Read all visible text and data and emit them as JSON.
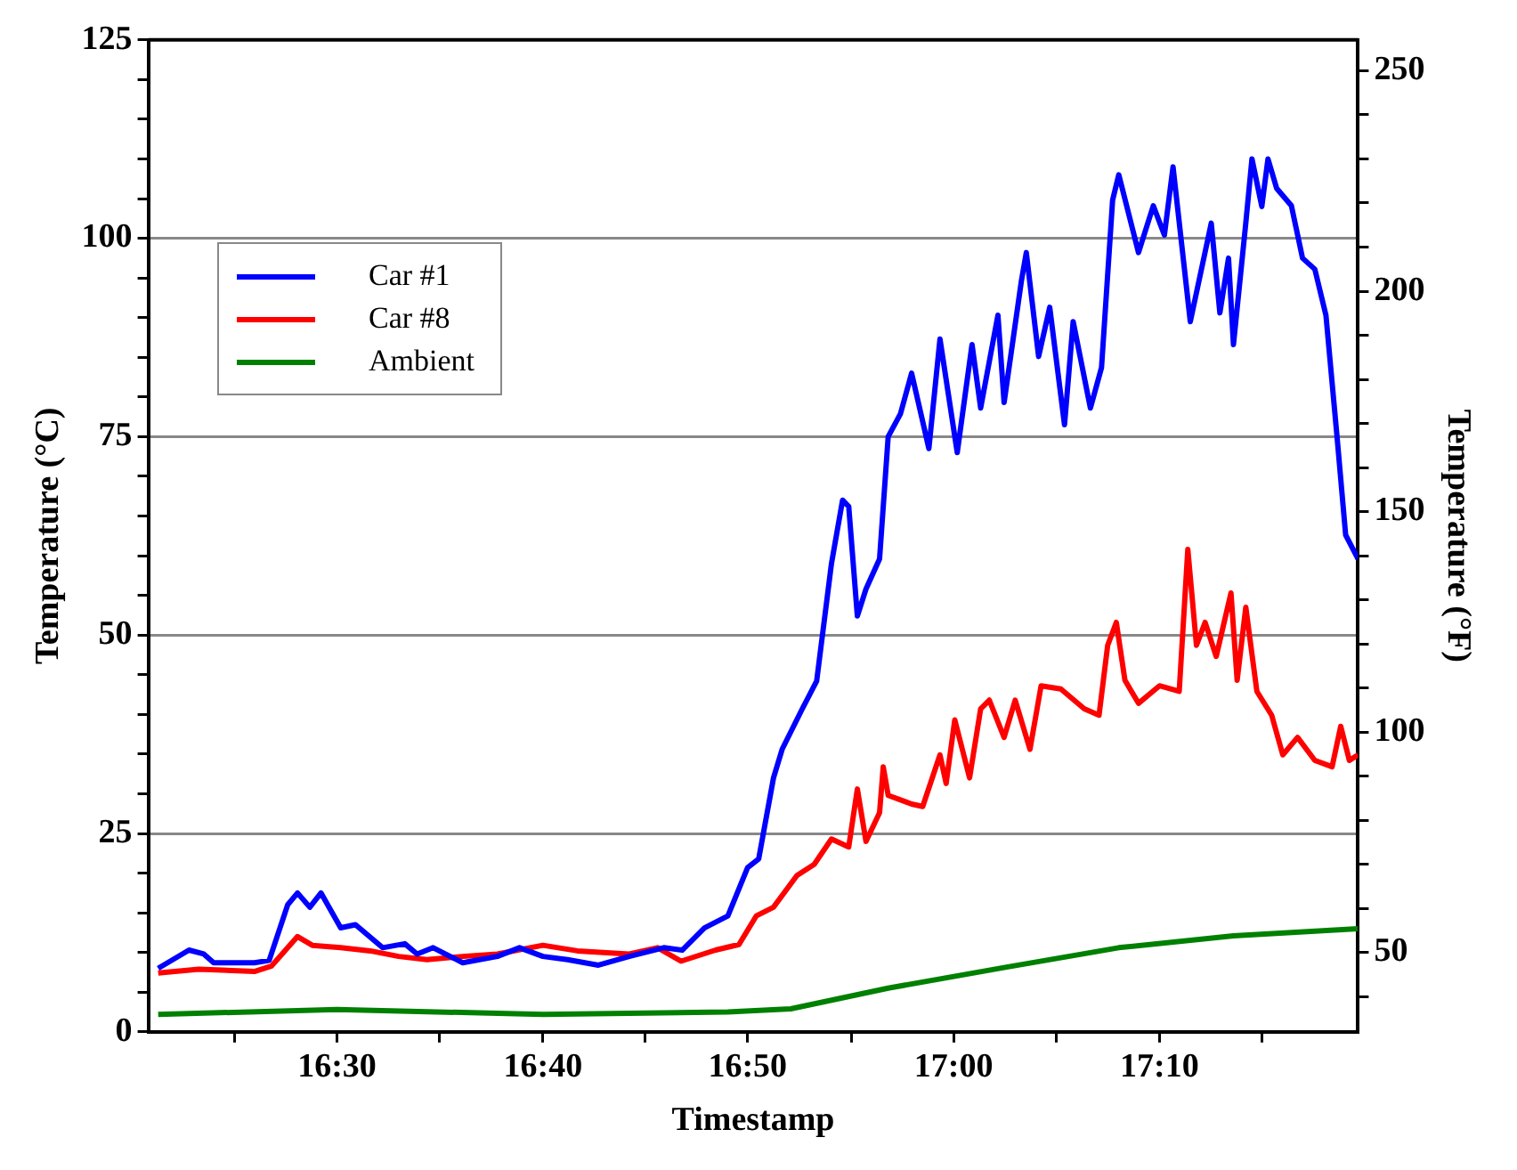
{
  "chart_data": {
    "type": "line",
    "xlabel": "Timestamp",
    "ylabel": "Temperature (°C)",
    "y2label": "Temperature (°F)",
    "xlim": [
      16.347,
      17.328
    ],
    "xticks": [
      {
        "value": 16.417,
        "label": null
      },
      {
        "value": 16.5,
        "label": "16:30"
      },
      {
        "value": 16.583,
        "label": null
      },
      {
        "value": 16.667,
        "label": "16:40"
      },
      {
        "value": 16.75,
        "label": null
      },
      {
        "value": 16.833,
        "label": "16:50"
      },
      {
        "value": 16.917,
        "label": null
      },
      {
        "value": 17,
        "label": "17:00"
      },
      {
        "value": 17.083,
        "label": null
      },
      {
        "value": 17.167,
        "label": "17:10"
      },
      {
        "value": 17.25,
        "label": null
      }
    ],
    "ylim": [
      0,
      125
    ],
    "yticks": [
      0,
      {
        "value": 5,
        "label": null
      },
      {
        "value": 10,
        "label": null
      },
      {
        "value": 15,
        "label": null
      },
      {
        "value": 20,
        "label": null
      },
      25,
      {
        "value": 30,
        "label": null
      },
      {
        "value": 35,
        "label": null
      },
      {
        "value": 40,
        "label": null
      },
      {
        "value": 45,
        "label": null
      },
      50,
      {
        "value": 55,
        "label": null
      },
      {
        "value": 60,
        "label": null
      },
      {
        "value": 65,
        "label": null
      },
      {
        "value": 70,
        "label": null
      },
      75,
      {
        "value": 80,
        "label": null
      },
      {
        "value": 85,
        "label": null
      },
      {
        "value": 90,
        "label": null
      },
      {
        "value": 95,
        "label": null
      },
      100,
      {
        "value": 105,
        "label": null
      },
      {
        "value": 110,
        "label": null
      },
      {
        "value": 115,
        "label": null
      },
      {
        "value": 120,
        "label": null
      },
      125
    ],
    "y2lim": [
      32,
      257
    ],
    "y2ticks": [
      {
        "value": 40,
        "label": null
      },
      50,
      {
        "value": 60,
        "label": null
      },
      {
        "value": 70,
        "label": null
      },
      {
        "value": 80,
        "label": null
      },
      {
        "value": 90,
        "label": null
      },
      100,
      {
        "value": 110,
        "label": null
      },
      {
        "value": 120,
        "label": null
      },
      {
        "value": 130,
        "label": null
      },
      {
        "value": 140,
        "label": null
      },
      150,
      {
        "value": 160,
        "label": null
      },
      {
        "value": 170,
        "label": null
      },
      {
        "value": 180,
        "label": null
      },
      {
        "value": 190,
        "label": null
      },
      200,
      {
        "value": 210,
        "label": null
      },
      {
        "value": 220,
        "label": null
      },
      {
        "value": 230,
        "label": null
      },
      {
        "value": 240,
        "label": null
      },
      250
    ],
    "grid": "y",
    "legend": "top left",
    "marker": "none",
    "line_style": "solid",
    "series": [
      {
        "name": "Car #1",
        "color": "#0000ff",
        "x": [
          16.355,
          16.38,
          16.392,
          16.4,
          16.433,
          16.445,
          16.46,
          16.468,
          16.478,
          16.487,
          16.503,
          16.515,
          16.537,
          16.555,
          16.565,
          16.578,
          16.602,
          16.63,
          16.648,
          16.667,
          16.687,
          16.712,
          16.737,
          16.765,
          16.78,
          16.798,
          16.817,
          16.833,
          16.842,
          16.854,
          16.861,
          16.877,
          16.889,
          16.901,
          16.91,
          16.915,
          16.922,
          16.929,
          16.94,
          16.947,
          16.957,
          16.966,
          16.98,
          16.989,
          17.003,
          17.015,
          17.022,
          17.036,
          17.041,
          17.055,
          17.059,
          17.069,
          17.078,
          17.09,
          17.097,
          17.111,
          17.12,
          17.129,
          17.134,
          17.15,
          17.162,
          17.171,
          17.178,
          17.192,
          17.209,
          17.216,
          17.223,
          17.227,
          17.237,
          17.242,
          17.25,
          17.255,
          17.262,
          17.274,
          17.283,
          17.293,
          17.302,
          17.311,
          17.318,
          17.328
        ],
        "values": [
          8.0,
          10.3,
          9.8,
          8.7,
          8.7,
          9.0,
          16.0,
          17.5,
          15.7,
          17.5,
          13.1,
          13.5,
          10.6,
          11.1,
          9.8,
          10.6,
          8.7,
          9.5,
          10.6,
          9.5,
          9.1,
          8.4,
          9.5,
          10.6,
          10.3,
          13.1,
          14.6,
          20.7,
          21.8,
          32.0,
          35.6,
          40.6,
          44.2,
          59.0,
          67.0,
          66.2,
          52.4,
          55.8,
          59.6,
          75.0,
          77.9,
          83.0,
          73.5,
          87.3,
          73.0,
          86.6,
          78.6,
          90.3,
          79.3,
          94.6,
          98.2,
          85.1,
          91.3,
          76.5,
          89.5,
          78.6,
          83.7,
          104.8,
          108,
          98.2,
          104.1,
          100.4,
          109,
          89.5,
          101.9,
          90.6,
          97.5,
          86.6,
          101.9,
          110,
          104,
          110,
          106.3,
          104.1,
          97.5,
          96.1,
          90.3,
          75.0,
          62.6,
          59.6
        ]
      },
      {
        "name": "Car #8",
        "color": "#ff0000",
        "x": [
          16.355,
          16.388,
          16.433,
          16.447,
          16.468,
          16.48,
          16.503,
          16.527,
          16.55,
          16.573,
          16.602,
          16.63,
          16.667,
          16.695,
          16.737,
          16.76,
          16.779,
          16.807,
          16.826,
          16.84,
          16.854,
          16.873,
          16.887,
          16.901,
          16.915,
          16.922,
          16.929,
          16.94,
          16.943,
          16.947,
          16.966,
          16.975,
          16.989,
          16.994,
          17.001,
          17.013,
          17.022,
          17.029,
          17.041,
          17.05,
          17.062,
          17.071,
          17.087,
          17.106,
          17.118,
          17.125,
          17.132,
          17.139,
          17.15,
          17.167,
          17.183,
          17.19,
          17.197,
          17.204,
          17.213,
          17.225,
          17.23,
          17.237,
          17.246,
          17.258,
          17.267,
          17.279,
          17.293,
          17.307,
          17.314,
          17.321,
          17.328
        ],
        "values": [
          7.4,
          7.9,
          7.6,
          8.3,
          12.0,
          10.9,
          10.6,
          10.2,
          9.5,
          9.1,
          9.5,
          9.8,
          10.9,
          10.2,
          9.8,
          10.6,
          8.9,
          10.3,
          11.0,
          14.6,
          15.7,
          19.7,
          21.1,
          24.3,
          23.3,
          30.6,
          24.0,
          27.6,
          33.4,
          29.8,
          28.7,
          28.4,
          34.9,
          31.3,
          39.3,
          32.0,
          40.7,
          41.8,
          37.1,
          41.8,
          35.6,
          43.6,
          43.2,
          40.7,
          39.9,
          48.7,
          51.6,
          44.3,
          41.4,
          43.6,
          42.9,
          60.8,
          48.7,
          51.6,
          47.3,
          55.3,
          44.3,
          53.5,
          42.9,
          39.9,
          34.9,
          37.1,
          34.2,
          33.4,
          38.5,
          34.2,
          34.9
        ]
      },
      {
        "name": "Ambient",
        "color": "#008000",
        "x": [
          16.355,
          16.5,
          16.667,
          16.817,
          16.868,
          16.947,
          17.041,
          17.134,
          17.227,
          17.328
        ],
        "values": [
          2.2,
          2.8,
          2.2,
          2.5,
          2.9,
          5.5,
          8.1,
          10.6,
          12.1,
          13.0
        ]
      }
    ]
  }
}
